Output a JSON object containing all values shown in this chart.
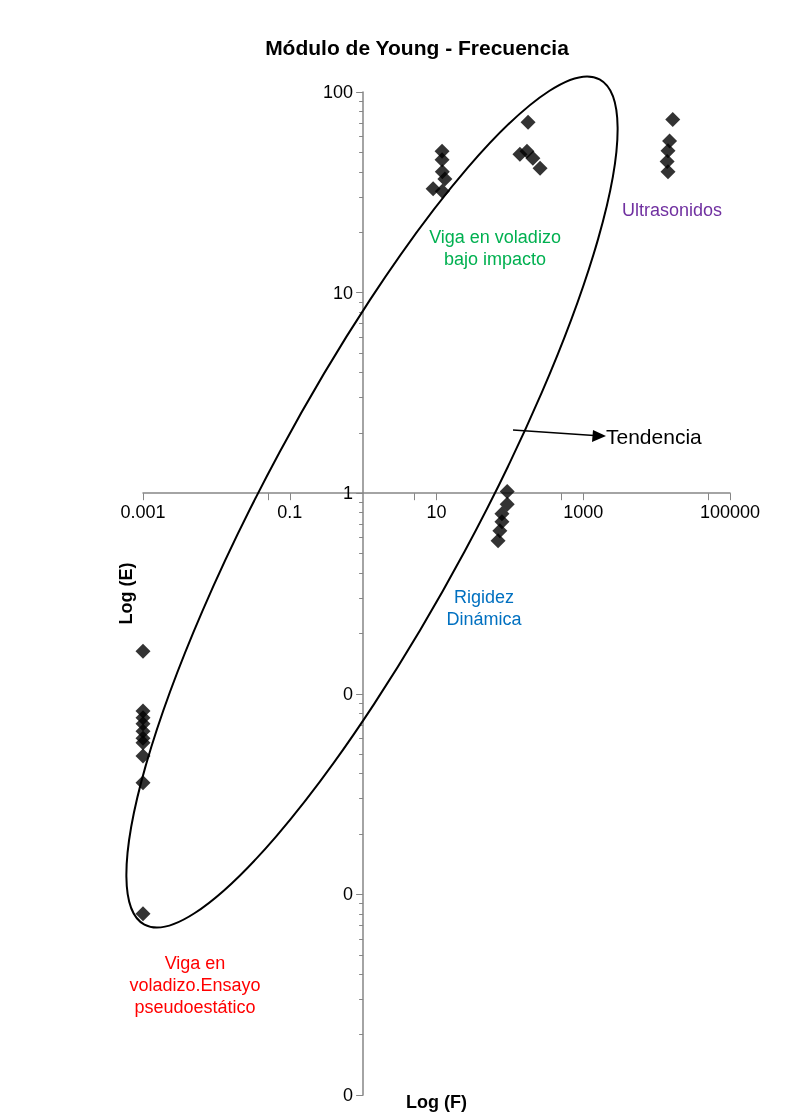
{
  "chart_data": {
    "type": "scatter",
    "title": "Módulo de Young - Frecuencia",
    "xlabel": "Log (F)",
    "ylabel": "Log (E)",
    "log": "xy",
    "grid": false,
    "marker": "diamond",
    "xlim": [
      0.001,
      100000
    ],
    "ylim": [
      0.001,
      100
    ],
    "xticks": [
      0.001,
      0.1,
      10,
      1000,
      100000
    ],
    "yticks": [
      {
        "value": 0.001,
        "label": "0"
      },
      {
        "value": 0.01,
        "label": "0"
      },
      {
        "value": 0.1,
        "label": "0"
      },
      1,
      10,
      100
    ],
    "series": [
      {
        "color": "#000000",
        "x": [
          0.001,
          0.001,
          0.001,
          0.001,
          0.001,
          0.001,
          0.001,
          0.001,
          0.001,
          0.001,
          11.9,
          11.9,
          12,
          13,
          9,
          12,
          177,
          171,
          206,
          258,
          137,
          92,
          92,
          78,
          78,
          73,
          69,
          16600,
          15000,
          14300,
          13900,
          14300
        ],
        "values": [
          0.163,
          0.082,
          0.076,
          0.071,
          0.065,
          0.06,
          0.057,
          0.049,
          0.036,
          0.008,
          50.7,
          46,
          40,
          36.8,
          32.9,
          32,
          70.7,
          50.7,
          46.8,
          41.7,
          49,
          1.02,
          0.88,
          0.79,
          0.72,
          0.65,
          0.58,
          73,
          57,
          51,
          45,
          40
        ]
      }
    ],
    "annotations": [
      "Viga en voladizo\nbajo impacto",
      "Ultrasonidos",
      "Rigidez\nDinámica",
      "Viga en\nvoladizo.Ensayo\npseudoestático",
      "Tendencia"
    ]
  }
}
